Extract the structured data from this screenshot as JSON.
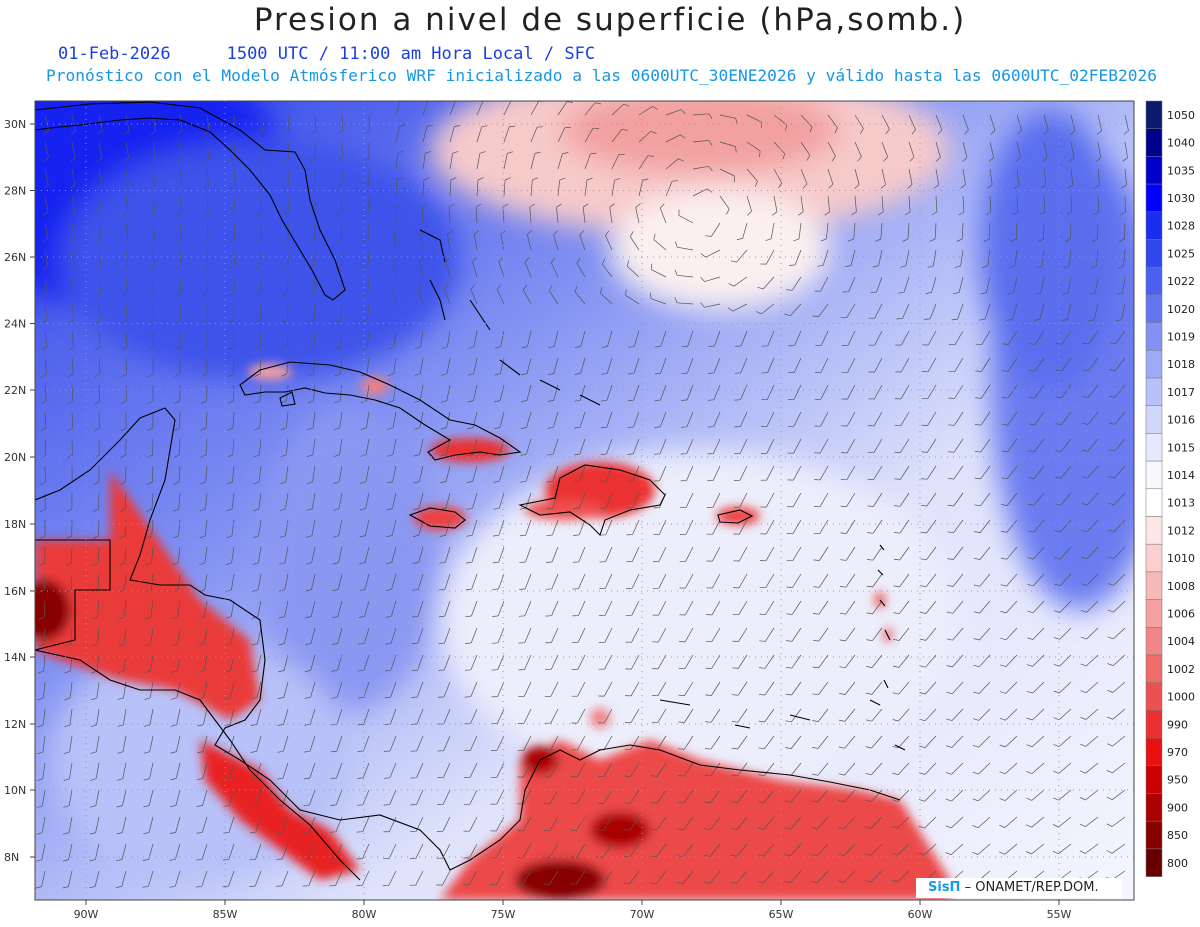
{
  "title": "Presion a nivel de superficie (hPa,somb.)",
  "subtitle_date": "01-Feb-2026",
  "subtitle_time": "1500 UTC / 11:00 am Hora Local / SFC",
  "subtitle_model": "Pronóstico con el Modelo Atmósferico WRF inicializado a las 0600UTC_30ENE2026 y válido hasta las  0600UTC_02FEB2026",
  "credit": {
    "brand": "SisΠ",
    "text": "– ONAMET/REP.DOM."
  },
  "lat_labels": [
    "30N",
    "28N",
    "26N",
    "24N",
    "22N",
    "20N",
    "18N",
    "16N",
    "14N",
    "12N",
    "10N",
    "8N"
  ],
  "lon_labels": [
    "90W",
    "85W",
    "80W",
    "75W",
    "70W",
    "65W",
    "60W",
    "55W"
  ],
  "colorbar": {
    "levels": [
      "1050",
      "1040",
      "1035",
      "1030",
      "1028",
      "1025",
      "1022",
      "1020",
      "1019",
      "1018",
      "1017",
      "1016",
      "1015",
      "1014",
      "1013",
      "1012",
      "1010",
      "1008",
      "1006",
      "1004",
      "1002",
      "1000",
      "990",
      "970",
      "950",
      "900",
      "850",
      "800"
    ],
    "colors": [
      "#0c1a6e",
      "#00008a",
      "#0000cd",
      "#0000ff",
      "#1a2ef0",
      "#2f47ec",
      "#4a60ee",
      "#6577f0",
      "#8291f3",
      "#9eaaf6",
      "#b8c1f9",
      "#d1d7fb",
      "#e6e9fd",
      "#f7f8fe",
      "#ffffff",
      "#fde6e6",
      "#fbcfcf",
      "#f8b8b8",
      "#f5a0a0",
      "#f28686",
      "#ef6c6c",
      "#ec5050",
      "#ea3030",
      "#e81010",
      "#cc0000",
      "#aa0000",
      "#880000",
      "#660000"
    ]
  }
}
